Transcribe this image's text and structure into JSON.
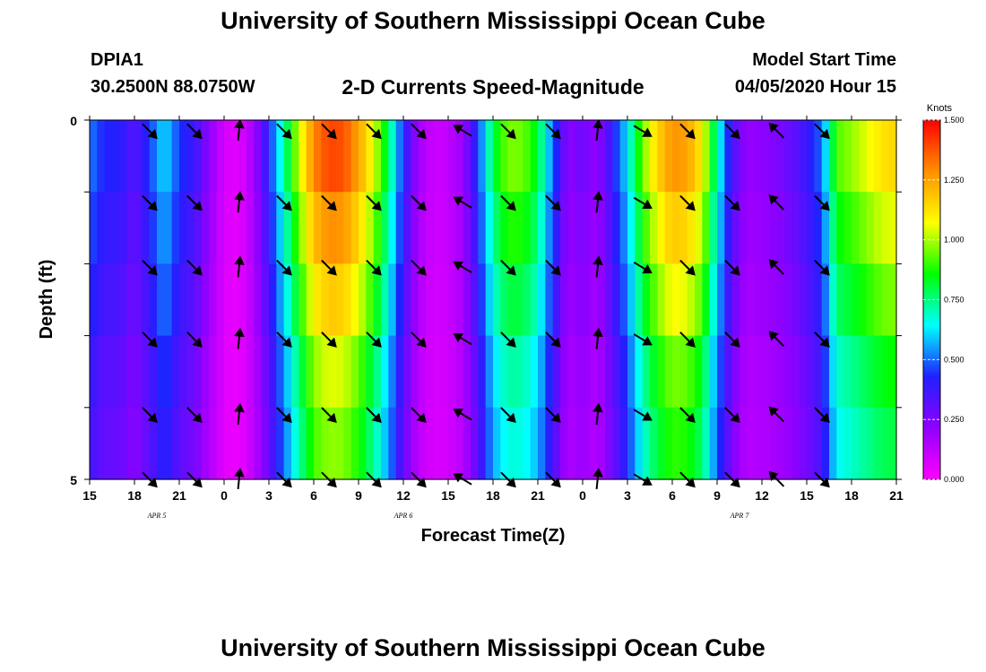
{
  "header": {
    "title": "University of Southern Mississippi Ocean Cube",
    "station": "DPIA1",
    "coords": "30.2500N 88.0750W",
    "subtitle": "2-D Currents Speed-Magnitude",
    "start_label": "Model Start Time",
    "start_value": "04/05/2020 Hour 15"
  },
  "footer": {
    "title": "University of Southern Mississippi Ocean Cube"
  },
  "chart_data": {
    "type": "heatmap",
    "title": "2-D Currents Speed-Magnitude",
    "xlabel": "Forecast Time(Z)",
    "ylabel": "Depth (ft)",
    "x_ticks": [
      "15",
      "18",
      "21",
      "0",
      "3",
      "6",
      "9",
      "12",
      "15",
      "18",
      "21",
      "0",
      "3",
      "6",
      "9",
      "12",
      "15",
      "18",
      "21"
    ],
    "date_labels": [
      {
        "text": "APR 5",
        "x_hour": 4.5
      },
      {
        "text": "APR 6",
        "x_hour": 21
      },
      {
        "text": "APR 7",
        "x_hour": 43.5
      }
    ],
    "y_ticks": [
      "0",
      "5"
    ],
    "ylim": [
      0,
      5
    ],
    "x_range_hours": [
      0,
      54
    ],
    "depth_levels": 5,
    "colorbar": {
      "title": "Knots",
      "range": [
        0,
        1.5
      ],
      "ticks": [
        "0.000",
        "0.250",
        "0.500",
        "0.750",
        "1.000",
        "1.250",
        "1.500"
      ],
      "colors": [
        "#ff00ff",
        "#9000ff",
        "#2020ff",
        "#00ffff",
        "#00ff00",
        "#ffff00",
        "#ff9000",
        "#ff0000"
      ]
    },
    "speed_profile": [
      {
        "h": 0,
        "v": 0.52
      },
      {
        "h": 1,
        "v": 0.42
      },
      {
        "h": 2,
        "v": 0.42
      },
      {
        "h": 3,
        "v": 0.32
      },
      {
        "h": 4,
        "v": 0.45
      },
      {
        "h": 5,
        "v": 0.62
      },
      {
        "h": 6,
        "v": 0.45
      },
      {
        "h": 7,
        "v": 0.38
      },
      {
        "h": 8,
        "v": 0.22
      },
      {
        "h": 9,
        "v": 0.08
      },
      {
        "h": 10,
        "v": 0.05
      },
      {
        "h": 11,
        "v": 0.18
      },
      {
        "h": 12,
        "v": 0.42
      },
      {
        "h": 13,
        "v": 0.72
      },
      {
        "h": 14,
        "v": 1.02
      },
      {
        "h": 15,
        "v": 1.3
      },
      {
        "h": 16,
        "v": 1.4
      },
      {
        "h": 17,
        "v": 1.38
      },
      {
        "h": 18,
        "v": 1.25
      },
      {
        "h": 19,
        "v": 1.05
      },
      {
        "h": 20,
        "v": 0.78
      },
      {
        "h": 21,
        "v": 0.42
      },
      {
        "h": 22,
        "v": 0.18
      },
      {
        "h": 23,
        "v": 0.1
      },
      {
        "h": 24,
        "v": 0.12
      },
      {
        "h": 25,
        "v": 0.2
      },
      {
        "h": 26,
        "v": 0.45
      },
      {
        "h": 27,
        "v": 0.8
      },
      {
        "h": 28,
        "v": 0.96
      },
      {
        "h": 29,
        "v": 0.95
      },
      {
        "h": 30,
        "v": 0.82
      },
      {
        "h": 31,
        "v": 0.5
      },
      {
        "h": 32,
        "v": 0.22
      },
      {
        "h": 33,
        "v": 0.28
      },
      {
        "h": 34,
        "v": 0.2
      },
      {
        "h": 35,
        "v": 0.4
      },
      {
        "h": 36,
        "v": 0.62
      },
      {
        "h": 37,
        "v": 0.95
      },
      {
        "h": 38,
        "v": 1.15
      },
      {
        "h": 39,
        "v": 1.28
      },
      {
        "h": 40,
        "v": 1.25
      },
      {
        "h": 41,
        "v": 1.1
      },
      {
        "h": 42,
        "v": 0.7
      },
      {
        "h": 43,
        "v": 0.35
      },
      {
        "h": 44,
        "v": 0.2
      },
      {
        "h": 45,
        "v": 0.22
      },
      {
        "h": 46,
        "v": 0.25
      },
      {
        "h": 47,
        "v": 0.3
      },
      {
        "h": 48,
        "v": 0.38
      },
      {
        "h": 49,
        "v": 0.5
      },
      {
        "h": 50,
        "v": 0.92
      },
      {
        "h": 51,
        "v": 0.98
      },
      {
        "h": 52,
        "v": 1.05
      },
      {
        "h": 53,
        "v": 1.12
      },
      {
        "h": 54,
        "v": 1.15
      }
    ],
    "depth_factors": [
      1.0,
      0.92,
      0.84,
      0.75,
      0.7
    ],
    "vector_rows_ft": [
      0.15,
      1.15,
      2.05,
      3.05,
      4.1,
      5.0
    ],
    "vectors": [
      {
        "h": 4,
        "dx": 1,
        "dy": 1
      },
      {
        "h": 7,
        "dx": 1,
        "dy": 1
      },
      {
        "h": 10,
        "dx": 0.1,
        "dy": -1
      },
      {
        "h": 13,
        "dx": 1,
        "dy": 1
      },
      {
        "h": 16,
        "dx": 1,
        "dy": 1
      },
      {
        "h": 19,
        "dx": 1,
        "dy": 1
      },
      {
        "h": 22,
        "dx": 1,
        "dy": 1
      },
      {
        "h": 25,
        "dx": -1,
        "dy": -0.6
      },
      {
        "h": 28,
        "dx": 1,
        "dy": 1
      },
      {
        "h": 31,
        "dx": 1,
        "dy": 1
      },
      {
        "h": 34,
        "dx": 0.1,
        "dy": -1
      },
      {
        "h": 37,
        "dx": 1,
        "dy": 0.6
      },
      {
        "h": 40,
        "dx": 1,
        "dy": 1
      },
      {
        "h": 43,
        "dx": 1,
        "dy": 1
      },
      {
        "h": 46,
        "dx": -1,
        "dy": -1
      },
      {
        "h": 49,
        "dx": 1,
        "dy": 1
      }
    ]
  }
}
